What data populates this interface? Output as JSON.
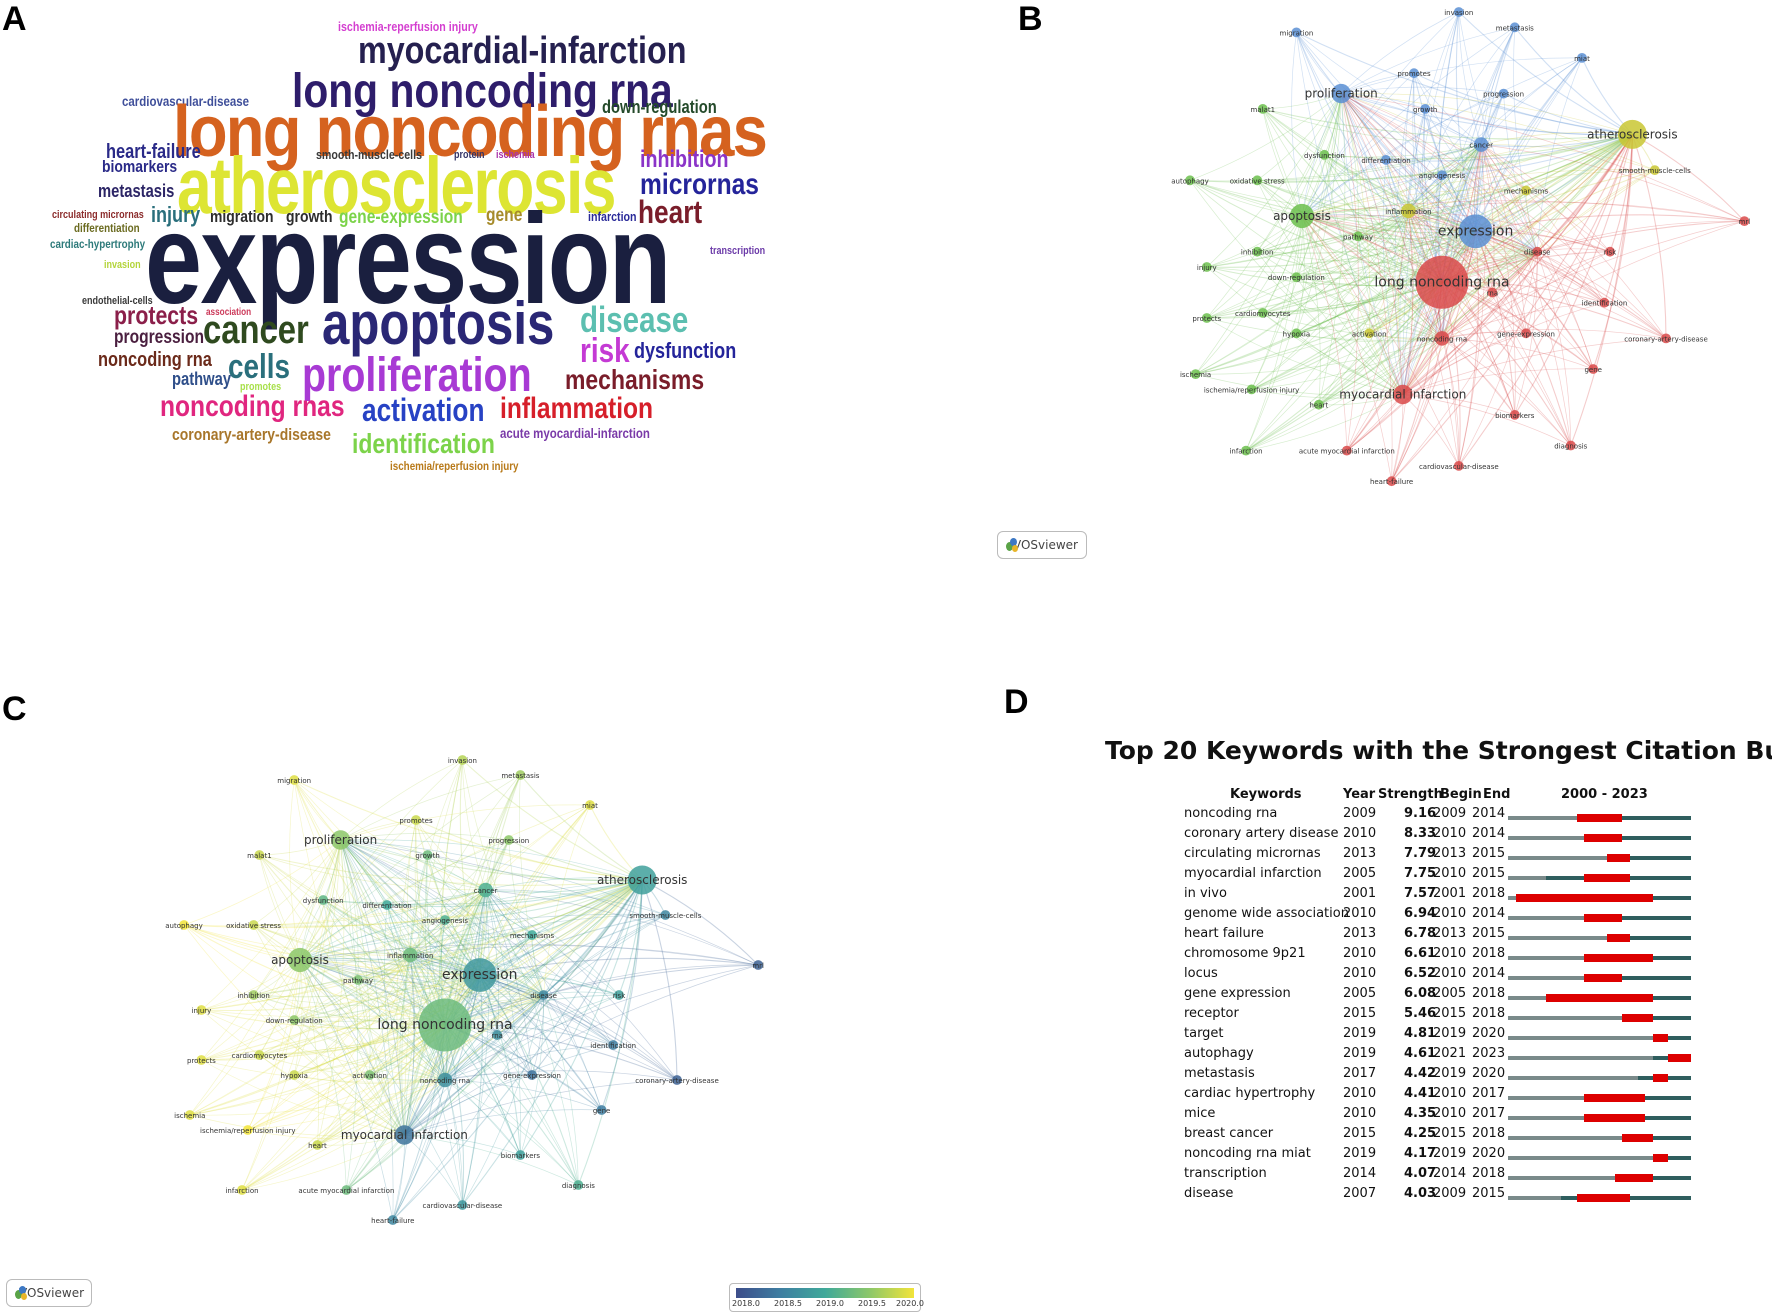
{
  "panels": {
    "a": "A",
    "b": "B",
    "c": "C",
    "d": "D"
  },
  "vosviewer_label": "VOSviewer",
  "chart_data": [
    {
      "type": "wordcloud",
      "panel": "A",
      "words": [
        {
          "text": "ischemia-reperfusion injury",
          "color": "#d43fd0",
          "size": 13
        },
        {
          "text": "myocardial-infarction",
          "color": "#25204f",
          "size": 38
        },
        {
          "text": "long noncoding rna",
          "color": "#2e1d6b",
          "size": 48
        },
        {
          "text": "cardiovascular-disease",
          "color": "#3f4f9a",
          "size": 14
        },
        {
          "text": "down-regulation",
          "color": "#244a2a",
          "size": 18
        },
        {
          "text": "long noncoding rnas",
          "color": "#d5621f",
          "size": 72
        },
        {
          "text": "heart-failure",
          "color": "#2a2a88",
          "size": 20
        },
        {
          "text": "biomarkers",
          "color": "#2a2a88",
          "size": 17
        },
        {
          "text": "smooth-muscle-cells",
          "color": "#3a3a3a",
          "size": 13
        },
        {
          "text": "protein",
          "color": "#333366",
          "size": 11
        },
        {
          "text": "ischemia",
          "color": "#aa33aa",
          "size": 11
        },
        {
          "text": "inhibition",
          "color": "#8b34c8",
          "size": 24
        },
        {
          "text": "atherosclerosis",
          "color": "#dde533",
          "size": 80
        },
        {
          "text": "metastasis",
          "color": "#2c2566",
          "size": 18
        },
        {
          "text": "micrornas",
          "color": "#24249a",
          "size": 30
        },
        {
          "text": "circulating micrornas",
          "color": "#8b2b2b",
          "size": 11
        },
        {
          "text": "injury",
          "color": "#2a6f7c",
          "size": 22
        },
        {
          "text": "migration",
          "color": "#2d2d2d",
          "size": 17
        },
        {
          "text": "growth",
          "color": "#2d2d2d",
          "size": 17
        },
        {
          "text": "gene-expression",
          "color": "#7cd34a",
          "size": 19
        },
        {
          "text": "gene",
          "color": "#a68b2b",
          "size": 19
        },
        {
          "text": "infarction",
          "color": "#2a2a99",
          "size": 13
        },
        {
          "text": "heart",
          "color": "#7a1d2a",
          "size": 32
        },
        {
          "text": "differentiation",
          "color": "#6b6b20",
          "size": 12
        },
        {
          "text": "cardiac-hypertrophy",
          "color": "#2d7a7a",
          "size": 12
        },
        {
          "text": "invasion",
          "color": "#b3d43a",
          "size": 11
        },
        {
          "text": "expression",
          "color": "#1a1f3f",
          "size": 128
        },
        {
          "text": "transcription",
          "color": "#6b3aa8",
          "size": 11
        },
        {
          "text": "endothelial-cells",
          "color": "#3a3a3a",
          "size": 11
        },
        {
          "text": "association",
          "color": "#cc3a5a",
          "size": 10
        },
        {
          "text": "protects",
          "color": "#8b1f4a",
          "size": 26
        },
        {
          "text": "progression",
          "color": "#4a1f3f",
          "size": 19
        },
        {
          "text": "cancer",
          "color": "#2f4a1f",
          "size": 40
        },
        {
          "text": "apoptosis",
          "color": "#2a2775",
          "size": 60
        },
        {
          "text": "disease",
          "color": "#5cbfb0",
          "size": 36
        },
        {
          "text": "risk",
          "color": "#c43ad4",
          "size": 34
        },
        {
          "text": "dysfunction",
          "color": "#24249a",
          "size": 22
        },
        {
          "text": "noncoding rna",
          "color": "#6b2a1a",
          "size": 20
        },
        {
          "text": "pathway",
          "color": "#2f4f8a",
          "size": 18
        },
        {
          "text": "cells",
          "color": "#2a6f7c",
          "size": 34
        },
        {
          "text": "promotes",
          "color": "#a8e04a",
          "size": 11
        },
        {
          "text": "proliferation",
          "color": "#a83ad4",
          "size": 48
        },
        {
          "text": "mechanisms",
          "color": "#7a1d2a",
          "size": 28
        },
        {
          "text": "noncoding rnas",
          "color": "#e0267f",
          "size": 30
        },
        {
          "text": "activation",
          "color": "#2742c4",
          "size": 32
        },
        {
          "text": "inflammation",
          "color": "#d61f2a",
          "size": 30
        },
        {
          "text": "coronary-artery-disease",
          "color": "#a8762a",
          "size": 17
        },
        {
          "text": "acute myocardial-infarction",
          "color": "#7a3aa8",
          "size": 14
        },
        {
          "text": "identification",
          "color": "#7cd34a",
          "size": 28
        },
        {
          "text": "ischemia/reperfusion injury",
          "color": "#b87a1a",
          "size": 12
        }
      ]
    },
    {
      "type": "network",
      "panel": "B",
      "nodes": [
        {
          "label": "migration",
          "cluster": "blue",
          "weight": 1
        },
        {
          "label": "invasion",
          "cluster": "blue",
          "weight": 1
        },
        {
          "label": "metastasis",
          "cluster": "blue",
          "weight": 1
        },
        {
          "label": "promotes",
          "cluster": "blue",
          "weight": 1
        },
        {
          "label": "miat",
          "cluster": "blue",
          "weight": 1
        },
        {
          "label": "malat1",
          "cluster": "green",
          "weight": 1
        },
        {
          "label": "proliferation",
          "cluster": "blue",
          "weight": 3
        },
        {
          "label": "growth",
          "cluster": "blue",
          "weight": 1
        },
        {
          "label": "progression",
          "cluster": "blue",
          "weight": 1
        },
        {
          "label": "atherosclerosis",
          "cluster": "yellow",
          "weight": 5
        },
        {
          "label": "cancer",
          "cluster": "blue",
          "weight": 2
        },
        {
          "label": "dysfunction",
          "cluster": "green",
          "weight": 1
        },
        {
          "label": "differentiation",
          "cluster": "blue",
          "weight": 1
        },
        {
          "label": "smooth-muscle-cells",
          "cluster": "yellow",
          "weight": 1
        },
        {
          "label": "angiogenesis",
          "cluster": "blue",
          "weight": 1
        },
        {
          "label": "autophagy",
          "cluster": "green",
          "weight": 1
        },
        {
          "label": "oxidative stress",
          "cluster": "green",
          "weight": 1
        },
        {
          "label": "mechanisms",
          "cluster": "yellow",
          "weight": 1
        },
        {
          "label": "apoptosis",
          "cluster": "green",
          "weight": 4
        },
        {
          "label": "inflammation",
          "cluster": "yellow",
          "weight": 2
        },
        {
          "label": "expression",
          "cluster": "blue",
          "weight": 6
        },
        {
          "label": "mrl",
          "cluster": "red",
          "weight": 1
        },
        {
          "label": "pathway",
          "cluster": "green",
          "weight": 1
        },
        {
          "label": "inhibition",
          "cluster": "green",
          "weight": 1
        },
        {
          "label": "disease",
          "cluster": "red",
          "weight": 1
        },
        {
          "label": "risk",
          "cluster": "red",
          "weight": 1
        },
        {
          "label": "injury",
          "cluster": "green",
          "weight": 1
        },
        {
          "label": "down-regulation",
          "cluster": "green",
          "weight": 1
        },
        {
          "label": "long noncoding rna",
          "cluster": "red",
          "weight": 10
        },
        {
          "label": "rna",
          "cluster": "red",
          "weight": 1
        },
        {
          "label": "cardiomyocytes",
          "cluster": "green",
          "weight": 1
        },
        {
          "label": "identification",
          "cluster": "red",
          "weight": 1
        },
        {
          "label": "protects",
          "cluster": "green",
          "weight": 1
        },
        {
          "label": "hypoxia",
          "cluster": "green",
          "weight": 1
        },
        {
          "label": "activation",
          "cluster": "yellow",
          "weight": 1
        },
        {
          "label": "noncoding rna",
          "cluster": "red",
          "weight": 2
        },
        {
          "label": "gene-expression",
          "cluster": "red",
          "weight": 1
        },
        {
          "label": "coronary-artery-disease",
          "cluster": "red",
          "weight": 1
        },
        {
          "label": "gene",
          "cluster": "red",
          "weight": 1
        },
        {
          "label": "ischemia",
          "cluster": "green",
          "weight": 1
        },
        {
          "label": "ischemia/reperfusion injury",
          "cluster": "green",
          "weight": 1
        },
        {
          "label": "myocardial infarction",
          "cluster": "red",
          "weight": 3
        },
        {
          "label": "heart",
          "cluster": "green",
          "weight": 1
        },
        {
          "label": "biomarkers",
          "cluster": "red",
          "weight": 1
        },
        {
          "label": "infarction",
          "cluster": "green",
          "weight": 1
        },
        {
          "label": "acute myocardial infarction",
          "cluster": "red",
          "weight": 1
        },
        {
          "label": "diagnosis",
          "cluster": "red",
          "weight": 1
        },
        {
          "label": "cardiovascular-disease",
          "cluster": "red",
          "weight": 1
        },
        {
          "label": "heart-failure",
          "cluster": "red",
          "weight": 1
        }
      ]
    },
    {
      "type": "network",
      "panel": "C",
      "colorbar": {
        "ticks": [
          "2018.0",
          "2018.5",
          "2019.0",
          "2019.5",
          "2020.0"
        ]
      },
      "nodes": [
        {
          "label": "migration",
          "year": 2019.9
        },
        {
          "label": "invasion",
          "year": 2019.7
        },
        {
          "label": "metastasis",
          "year": 2019.6
        },
        {
          "label": "promotes",
          "year": 2019.8
        },
        {
          "label": "miat",
          "year": 2019.9
        },
        {
          "label": "malat1",
          "year": 2019.8
        },
        {
          "label": "proliferation",
          "year": 2019.5
        },
        {
          "label": "growth",
          "year": 2019.3
        },
        {
          "label": "progression",
          "year": 2019.5
        },
        {
          "label": "atherosclerosis",
          "year": 2018.9
        },
        {
          "label": "cancer",
          "year": 2019.1
        },
        {
          "label": "dysfunction",
          "year": 2019.2
        },
        {
          "label": "differentiation",
          "year": 2019.0
        },
        {
          "label": "smooth-muscle-cells",
          "year": 2018.6
        },
        {
          "label": "angiogenesis",
          "year": 2019.1
        },
        {
          "label": "autophagy",
          "year": 2020.0
        },
        {
          "label": "oxidative stress",
          "year": 2019.8
        },
        {
          "label": "mechanisms",
          "year": 2019.0
        },
        {
          "label": "apoptosis",
          "year": 2019.5
        },
        {
          "label": "inflammation",
          "year": 2019.3
        },
        {
          "label": "expression",
          "year": 2018.8
        },
        {
          "label": "mrl",
          "year": 2018.2
        },
        {
          "label": "pathway",
          "year": 2019.4
        },
        {
          "label": "inhibition",
          "year": 2019.6
        },
        {
          "label": "disease",
          "year": 2018.6
        },
        {
          "label": "risk",
          "year": 2018.9
        },
        {
          "label": "injury",
          "year": 2019.9
        },
        {
          "label": "down-regulation",
          "year": 2019.5
        },
        {
          "label": "long noncoding rna",
          "year": 2019.3
        },
        {
          "label": "rna",
          "year": 2018.7
        },
        {
          "label": "cardiomyocytes",
          "year": 2019.8
        },
        {
          "label": "identification",
          "year": 2018.5
        },
        {
          "label": "protects",
          "year": 2019.9
        },
        {
          "label": "hypoxia",
          "year": 2019.8
        },
        {
          "label": "activation",
          "year": 2019.4
        },
        {
          "label": "noncoding rna",
          "year": 2018.7
        },
        {
          "label": "gene-expression",
          "year": 2018.4
        },
        {
          "label": "coronary-artery-disease",
          "year": 2018.2
        },
        {
          "label": "gene",
          "year": 2018.5
        },
        {
          "label": "ischemia",
          "year": 2019.9
        },
        {
          "label": "ischemia/reperfusion injury",
          "year": 2020.0
        },
        {
          "label": "myocardial infarction",
          "year": 2018.4
        },
        {
          "label": "heart",
          "year": 2019.8
        },
        {
          "label": "biomarkers",
          "year": 2018.9
        },
        {
          "label": "infarction",
          "year": 2019.9
        },
        {
          "label": "acute myocardial infarction",
          "year": 2019.3
        },
        {
          "label": "diagnosis",
          "year": 2019.1
        },
        {
          "label": "cardiovascular-disease",
          "year": 2018.8
        },
        {
          "label": "heart-failure",
          "year": 2018.6
        }
      ]
    },
    {
      "type": "table",
      "panel": "D",
      "title": "Top 20 Keywords with the Strongest Citation Bursts",
      "columns": [
        "Keywords",
        "Year",
        "Strength",
        "Begin",
        "End",
        "2000 - 2023"
      ],
      "range": [
        2000,
        2023
      ],
      "rows": [
        {
          "keyword": "noncoding rna",
          "year": 2009,
          "strength": "9.16",
          "begin": 2009,
          "end": 2014
        },
        {
          "keyword": "coronary artery disease",
          "year": 2010,
          "strength": "8.33",
          "begin": 2010,
          "end": 2014
        },
        {
          "keyword": "circulating micrornas",
          "year": 2013,
          "strength": "7.79",
          "begin": 2013,
          "end": 2015
        },
        {
          "keyword": "myocardial infarction",
          "year": 2005,
          "strength": "7.75",
          "begin": 2010,
          "end": 2015
        },
        {
          "keyword": "in vivo",
          "year": 2001,
          "strength": "7.57",
          "begin": 2001,
          "end": 2018
        },
        {
          "keyword": "genome wide association",
          "year": 2010,
          "strength": "6.94",
          "begin": 2010,
          "end": 2014
        },
        {
          "keyword": "heart failure",
          "year": 2013,
          "strength": "6.78",
          "begin": 2013,
          "end": 2015
        },
        {
          "keyword": "chromosome 9p21",
          "year": 2010,
          "strength": "6.61",
          "begin": 2010,
          "end": 2018
        },
        {
          "keyword": "locus",
          "year": 2010,
          "strength": "6.52",
          "begin": 2010,
          "end": 2014
        },
        {
          "keyword": "gene expression",
          "year": 2005,
          "strength": "6.08",
          "begin": 2005,
          "end": 2018
        },
        {
          "keyword": "receptor",
          "year": 2015,
          "strength": "5.46",
          "begin": 2015,
          "end": 2018
        },
        {
          "keyword": "target",
          "year": 2019,
          "strength": "4.81",
          "begin": 2019,
          "end": 2020
        },
        {
          "keyword": "autophagy",
          "year": 2019,
          "strength": "4.61",
          "begin": 2021,
          "end": 2023
        },
        {
          "keyword": "metastasis",
          "year": 2017,
          "strength": "4.42",
          "begin": 2019,
          "end": 2020
        },
        {
          "keyword": "cardiac hypertrophy",
          "year": 2010,
          "strength": "4.41",
          "begin": 2010,
          "end": 2017
        },
        {
          "keyword": "mice",
          "year": 2010,
          "strength": "4.35",
          "begin": 2010,
          "end": 2017
        },
        {
          "keyword": "breast cancer",
          "year": 2015,
          "strength": "4.25",
          "begin": 2015,
          "end": 2018
        },
        {
          "keyword": "noncoding rna miat",
          "year": 2019,
          "strength": "4.17",
          "begin": 2019,
          "end": 2020
        },
        {
          "keyword": "transcription",
          "year": 2014,
          "strength": "4.07",
          "begin": 2014,
          "end": 2018
        },
        {
          "keyword": "disease",
          "year": 2007,
          "strength": "4.03",
          "begin": 2009,
          "end": 2015
        }
      ]
    }
  ]
}
